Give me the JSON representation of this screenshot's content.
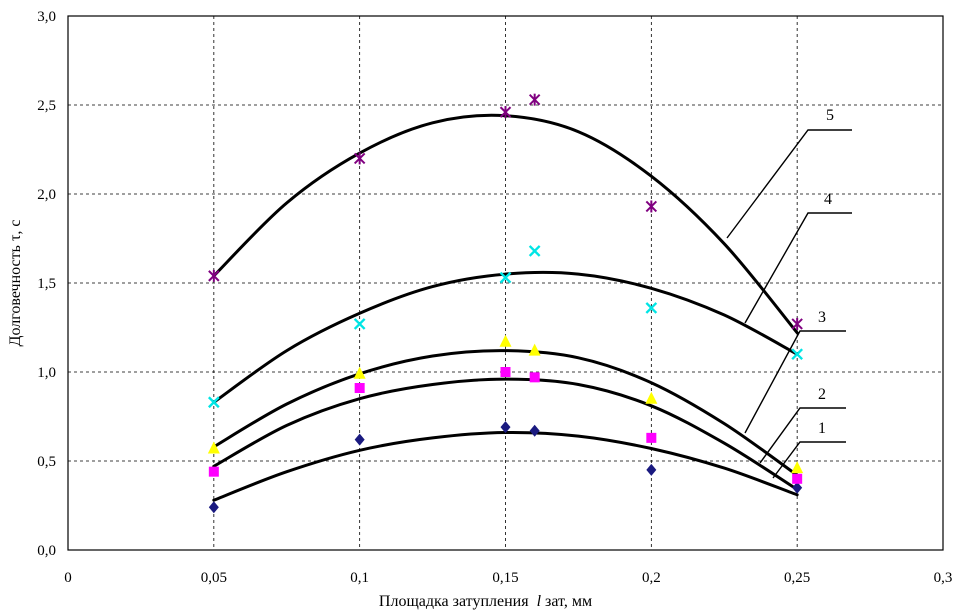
{
  "chart_data": {
    "type": "scatter",
    "title": "",
    "xlabel": "Площадка затупления",
    "xlabel_symbol": "l",
    "xlabel_sub": "зат, мм",
    "ylabel": "Долговечность τ, с",
    "xlim": [
      0,
      0.3
    ],
    "ylim": [
      0,
      3.0
    ],
    "x_ticks": [
      0,
      0.05,
      0.1,
      0.15,
      0.2,
      0.25,
      0.3
    ],
    "x_tick_labels": [
      "0",
      "0,05",
      "0,1",
      "0,15",
      "0,2",
      "0,25",
      "0,3"
    ],
    "y_ticks": [
      0,
      0.5,
      1.0,
      1.5,
      2.0,
      2.5,
      3.0
    ],
    "y_tick_labels": [
      "0,0",
      "0,5",
      "1,0",
      "1,5",
      "2,0",
      "2,5",
      "3,0"
    ],
    "grid": true,
    "series": [
      {
        "name": "1",
        "marker": "diamond",
        "color": "#1a1a80",
        "x": [
          0.05,
          0.1,
          0.15,
          0.16,
          0.2,
          0.25
        ],
        "y": [
          0.24,
          0.62,
          0.69,
          0.67,
          0.45,
          0.35
        ],
        "fit_x": [
          0.05,
          0.075,
          0.1,
          0.125,
          0.15,
          0.175,
          0.2,
          0.225,
          0.25
        ],
        "fit_y": [
          0.28,
          0.44,
          0.56,
          0.63,
          0.66,
          0.64,
          0.57,
          0.46,
          0.31
        ]
      },
      {
        "name": "2",
        "marker": "square",
        "color": "#ff00ff",
        "x": [
          0.05,
          0.1,
          0.15,
          0.16,
          0.2,
          0.25
        ],
        "y": [
          0.44,
          0.91,
          1.0,
          0.97,
          0.63,
          0.4
        ],
        "fit_x": [
          0.05,
          0.075,
          0.1,
          0.125,
          0.15,
          0.175,
          0.2,
          0.225,
          0.25
        ],
        "fit_y": [
          0.47,
          0.7,
          0.85,
          0.93,
          0.96,
          0.93,
          0.81,
          0.6,
          0.34
        ]
      },
      {
        "name": "3",
        "marker": "triangle",
        "color": "#ffff00",
        "x": [
          0.05,
          0.1,
          0.15,
          0.16,
          0.2,
          0.25
        ],
        "y": [
          0.57,
          0.99,
          1.17,
          1.12,
          0.85,
          0.46
        ],
        "fit_x": [
          0.05,
          0.075,
          0.1,
          0.125,
          0.15,
          0.175,
          0.2,
          0.225,
          0.25
        ],
        "fit_y": [
          0.58,
          0.82,
          0.99,
          1.09,
          1.12,
          1.08,
          0.94,
          0.71,
          0.42
        ]
      },
      {
        "name": "4",
        "marker": "x",
        "color": "#00e5e5",
        "x": [
          0.05,
          0.1,
          0.15,
          0.16,
          0.2,
          0.25
        ],
        "y": [
          0.83,
          1.27,
          1.53,
          1.68,
          1.36,
          1.1
        ],
        "fit_x": [
          0.05,
          0.075,
          0.1,
          0.125,
          0.15,
          0.175,
          0.2,
          0.225,
          0.25
        ],
        "fit_y": [
          0.83,
          1.12,
          1.33,
          1.48,
          1.55,
          1.55,
          1.47,
          1.32,
          1.1
        ]
      },
      {
        "name": "5",
        "marker": "asterisk",
        "color": "#800080",
        "x": [
          0.05,
          0.1,
          0.15,
          0.16,
          0.2,
          0.25
        ],
        "y": [
          1.54,
          2.2,
          2.46,
          2.53,
          1.93,
          1.27
        ],
        "fit_x": [
          0.05,
          0.075,
          0.1,
          0.125,
          0.15,
          0.175,
          0.2,
          0.225,
          0.25
        ],
        "fit_y": [
          1.54,
          1.95,
          2.23,
          2.4,
          2.44,
          2.35,
          2.1,
          1.72,
          1.22
        ]
      }
    ],
    "annotations": [
      {
        "text": "1",
        "target_series": "1"
      },
      {
        "text": "2",
        "target_series": "2"
      },
      {
        "text": "3",
        "target_series": "3"
      },
      {
        "text": "4",
        "target_series": "4"
      },
      {
        "text": "5",
        "target_series": "5"
      }
    ]
  }
}
